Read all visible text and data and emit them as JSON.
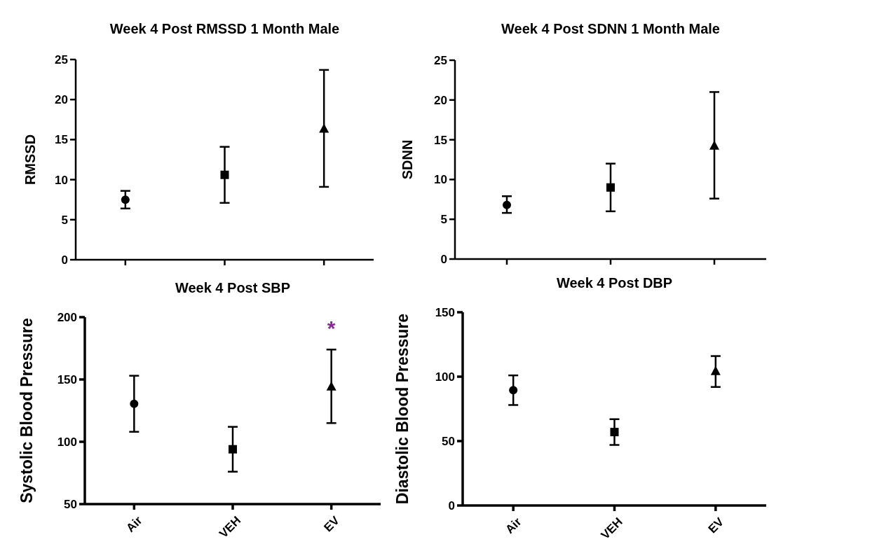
{
  "chart_data": [
    {
      "type": "scatter",
      "title": "Week 4 Post RMSSD 1 Month Male",
      "ylabel": "RMSSD",
      "categories": [
        null,
        null,
        null
      ],
      "ylim": [
        0,
        25
      ],
      "yticks": [
        0,
        5,
        10,
        15,
        20,
        25
      ],
      "tick_labels": "y",
      "series": [
        {
          "color": "#000000",
          "marker": "circle",
          "values": [
            7.5,
            null,
            null
          ],
          "errors": [
            [
              6.4,
              8.6
            ],
            null,
            null
          ]
        },
        {
          "color": "#000000",
          "marker": "square",
          "values": [
            null,
            10.6,
            null
          ],
          "errors": [
            null,
            [
              7.1,
              14.1
            ],
            null
          ]
        },
        {
          "color": "#000000",
          "marker": "triangle",
          "values": [
            null,
            null,
            16.3
          ],
          "errors": [
            null,
            null,
            [
              9.1,
              23.7
            ]
          ]
        }
      ]
    },
    {
      "type": "scatter",
      "title": "Week 4 Post SDNN 1 Month Male",
      "ylabel": "SDNN",
      "categories": [
        null,
        null,
        null
      ],
      "ylim": [
        0,
        25
      ],
      "yticks": [
        0,
        5,
        10,
        15,
        20,
        25
      ],
      "tick_labels": "y",
      "series": [
        {
          "color": "#000000",
          "marker": "circle",
          "values": [
            6.8,
            null,
            null
          ],
          "errors": [
            [
              5.8,
              7.9
            ],
            null,
            null
          ]
        },
        {
          "color": "#000000",
          "marker": "square",
          "values": [
            null,
            9.0,
            null
          ],
          "errors": [
            null,
            [
              6.0,
              12.0
            ],
            null
          ]
        },
        {
          "color": "#000000",
          "marker": "triangle",
          "values": [
            null,
            null,
            14.2
          ],
          "errors": [
            null,
            null,
            [
              7.6,
              21.0
            ]
          ]
        }
      ]
    },
    {
      "type": "scatter",
      "title": "Week 4 Post SBP",
      "ylabel": "Systolic Blood Pressure",
      "categories": [
        "Air",
        "VEH",
        "EV"
      ],
      "ylim": [
        50,
        200
      ],
      "yticks": [
        50,
        100,
        150,
        200
      ],
      "annotations": [
        "*"
      ],
      "series": [
        {
          "color": "#000000",
          "marker": "circle",
          "values": [
            130.5,
            null,
            null
          ],
          "errors": [
            [
              108,
              153
            ],
            null,
            null
          ]
        },
        {
          "color": "#000000",
          "marker": "square",
          "values": [
            null,
            94,
            null
          ],
          "errors": [
            null,
            [
              76,
              112
            ],
            null
          ]
        },
        {
          "color": "#000000",
          "marker": "triangle",
          "values": [
            null,
            null,
            144
          ],
          "errors": [
            null,
            null,
            [
              115,
              174
            ]
          ]
        }
      ]
    },
    {
      "type": "scatter",
      "title": "Week 4 Post DBP",
      "ylabel": "Diastolic Blood Pressure",
      "categories": [
        "Air",
        "VEH",
        "EV"
      ],
      "ylim": [
        0,
        150
      ],
      "yticks": [
        0,
        50,
        100,
        150
      ],
      "series": [
        {
          "color": "#000000",
          "marker": "circle",
          "values": [
            89.5,
            null,
            null
          ],
          "errors": [
            [
              78,
              101
            ],
            null,
            null
          ]
        },
        {
          "color": "#000000",
          "marker": "square",
          "values": [
            null,
            57,
            null
          ],
          "errors": [
            null,
            [
              47,
              67
            ],
            null
          ]
        },
        {
          "color": "#000000",
          "marker": "triangle",
          "values": [
            null,
            null,
            104
          ],
          "errors": [
            null,
            null,
            [
              92,
              116
            ]
          ]
        }
      ]
    }
  ]
}
